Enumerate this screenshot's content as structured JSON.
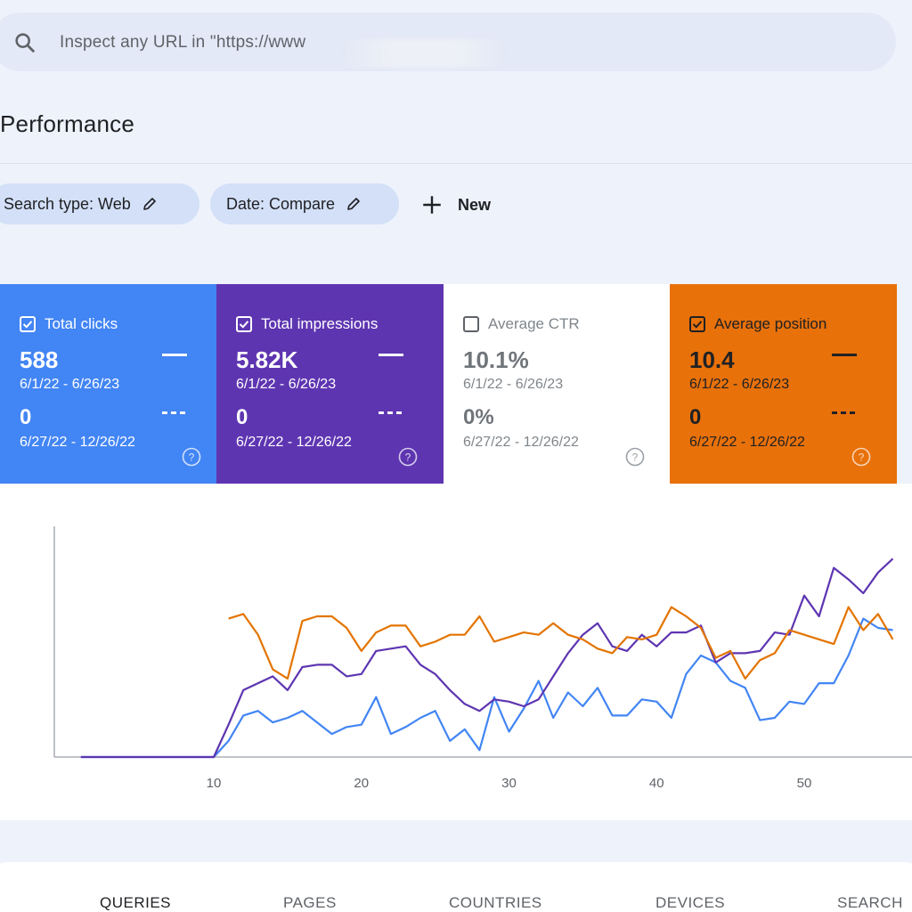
{
  "search": {
    "placeholder": "Inspect any URL in \"https://www"
  },
  "page": {
    "title": "Performance"
  },
  "filters": {
    "search_type": "Search type: Web",
    "date": "Date: Compare",
    "new": "New"
  },
  "metrics": [
    {
      "label": "Total clicks",
      "checked": true,
      "value1": "588",
      "range1": "6/1/22 - 6/26/23",
      "value2": "0",
      "range2": "6/27/22 - 12/26/22",
      "color": "#4285f4"
    },
    {
      "label": "Total impressions",
      "checked": true,
      "value1": "5.82K",
      "range1": "6/1/22 - 6/26/23",
      "value2": "0",
      "range2": "6/27/22 - 12/26/22",
      "color": "#5e35b1"
    },
    {
      "label": "Average CTR",
      "checked": false,
      "value1": "10.1%",
      "range1": "6/1/22 - 6/26/23",
      "value2": "0%",
      "range2": "6/27/22 - 12/26/22",
      "color": "#ffffff"
    },
    {
      "label": "Average position",
      "checked": true,
      "value1": "10.4",
      "range1": "6/1/22 - 6/26/23",
      "value2": "0",
      "range2": "6/27/22 - 12/26/22",
      "color": "#e8710a"
    }
  ],
  "chart_data": {
    "type": "line",
    "xticks": [
      10,
      20,
      30,
      40,
      50
    ],
    "xlim": [
      -0.8,
      57.3
    ],
    "ylim": [
      0,
      1
    ],
    "series": [
      {
        "color": "#4285f4",
        "x": [
          1,
          2,
          3,
          4,
          5,
          6,
          7,
          8,
          9,
          10,
          11,
          12,
          13,
          14,
          15,
          16,
          17,
          18,
          19,
          20,
          21,
          22,
          23,
          24,
          25,
          26,
          27,
          28,
          29,
          30,
          31,
          32,
          33,
          34,
          35,
          36,
          37,
          38,
          39,
          40,
          41,
          42,
          43,
          44,
          45,
          46,
          47,
          48,
          49,
          50,
          51,
          52,
          53,
          54,
          55,
          56
        ],
        "y": [
          0,
          0,
          0,
          0,
          0,
          0,
          0,
          0,
          0,
          0,
          0.07,
          0.18,
          0.2,
          0.15,
          0.17,
          0.2,
          0.15,
          0.1,
          0.13,
          0.14,
          0.26,
          0.1,
          0.13,
          0.17,
          0.2,
          0.07,
          0.12,
          0.03,
          0.26,
          0.11,
          0.21,
          0.33,
          0.17,
          0.28,
          0.22,
          0.3,
          0.18,
          0.18,
          0.25,
          0.24,
          0.17,
          0.36,
          0.44,
          0.41,
          0.33,
          0.3,
          0.16,
          0.17,
          0.24,
          0.23,
          0.32,
          0.32,
          0.44,
          0.6,
          0.56,
          0.55
        ]
      },
      {
        "color": "#5e35b1",
        "x": [
          1,
          2,
          3,
          4,
          5,
          6,
          7,
          8,
          9,
          10,
          11,
          12,
          13,
          14,
          15,
          16,
          17,
          18,
          19,
          20,
          21,
          22,
          23,
          24,
          25,
          26,
          27,
          28,
          29,
          30,
          31,
          32,
          33,
          34,
          35,
          36,
          37,
          38,
          39,
          40,
          41,
          42,
          43,
          44,
          45,
          46,
          47,
          48,
          49,
          50,
          51,
          52,
          53,
          54,
          55,
          56
        ],
        "y": [
          0,
          0,
          0,
          0,
          0,
          0,
          0,
          0,
          0,
          0,
          0.14,
          0.29,
          0.32,
          0.35,
          0.29,
          0.39,
          0.4,
          0.4,
          0.35,
          0.36,
          0.46,
          0.47,
          0.48,
          0.4,
          0.36,
          0.29,
          0.23,
          0.2,
          0.25,
          0.24,
          0.22,
          0.25,
          0.35,
          0.45,
          0.53,
          0.58,
          0.48,
          0.46,
          0.53,
          0.48,
          0.54,
          0.54,
          0.57,
          0.41,
          0.45,
          0.45,
          0.46,
          0.54,
          0.53,
          0.7,
          0.61,
          0.82,
          0.77,
          0.71,
          0.8,
          0.86
        ]
      },
      {
        "color": "#e37400",
        "x": [
          11,
          12,
          13,
          14,
          15,
          16,
          17,
          18,
          19,
          20,
          21,
          22,
          23,
          24,
          25,
          26,
          27,
          28,
          29,
          30,
          31,
          32,
          33,
          34,
          35,
          36,
          37,
          38,
          39,
          40,
          41,
          42,
          43,
          44,
          45,
          46,
          47,
          48,
          49,
          50,
          51,
          52,
          53,
          54,
          55,
          56
        ],
        "y": [
          0.6,
          0.62,
          0.53,
          0.38,
          0.34,
          0.59,
          0.61,
          0.61,
          0.56,
          0.46,
          0.54,
          0.57,
          0.57,
          0.48,
          0.5,
          0.53,
          0.53,
          0.61,
          0.5,
          0.52,
          0.54,
          0.53,
          0.58,
          0.53,
          0.51,
          0.47,
          0.45,
          0.52,
          0.51,
          0.53,
          0.65,
          0.61,
          0.56,
          0.43,
          0.46,
          0.34,
          0.42,
          0.45,
          0.55,
          0.53,
          0.51,
          0.49,
          0.65,
          0.55,
          0.62,
          0.51
        ]
      }
    ]
  },
  "tabs": [
    {
      "label": "QUERIES",
      "active": true
    },
    {
      "label": "PAGES",
      "active": false
    },
    {
      "label": "COUNTRIES",
      "active": false
    },
    {
      "label": "DEVICES",
      "active": false
    },
    {
      "label": "SEARCH A",
      "active": false
    }
  ]
}
